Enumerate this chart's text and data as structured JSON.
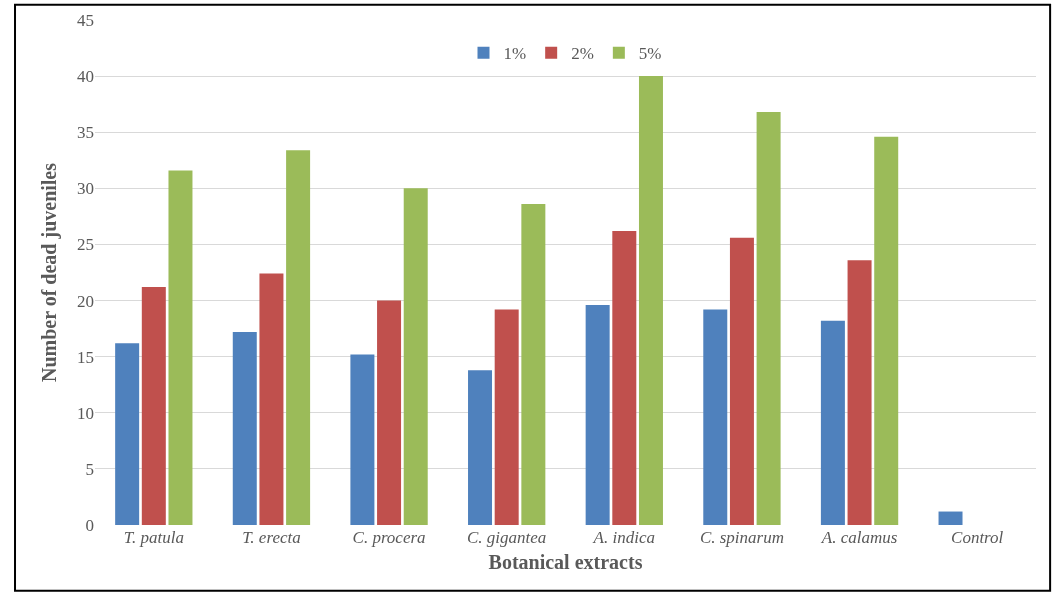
{
  "chart_data": {
    "type": "bar",
    "xlabel": "Botanical extracts",
    "ylabel": "Number of dead juveniles",
    "categories": [
      "T. patula",
      "T. erecta",
      "C. procera",
      "C. gigantea",
      "A. indica",
      "C. spinarum",
      "A. calamus",
      "Control"
    ],
    "series": [
      {
        "name": "1%",
        "color": "#4f81bd",
        "values": [
          16.2,
          17.2,
          15.2,
          13.8,
          19.6,
          19.2,
          18.2,
          1.2
        ]
      },
      {
        "name": "2%",
        "color": "#c0504d",
        "values": [
          21.2,
          22.4,
          20.0,
          19.2,
          26.2,
          25.6,
          23.6,
          0
        ]
      },
      {
        "name": "5%",
        "color": "#9bbb59",
        "values": [
          31.6,
          33.4,
          30.0,
          28.6,
          40.0,
          36.8,
          34.6,
          0
        ]
      }
    ],
    "ylim": [
      0,
      45
    ],
    "yticks": [
      0,
      5,
      10,
      15,
      20,
      25,
      30,
      35,
      40,
      45
    ],
    "grid": "y",
    "legend": "top"
  }
}
